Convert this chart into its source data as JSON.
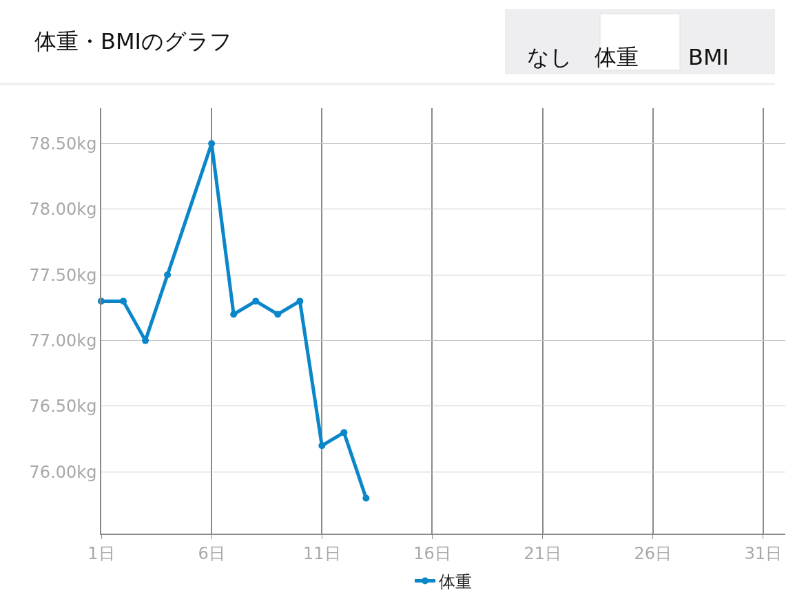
{
  "chart_data": {
    "type": "line",
    "title": "体重・BMIのグラフ",
    "annotations": [
      "なし",
      "体重",
      "BMI"
    ],
    "x": [
      1,
      2,
      3,
      4,
      6,
      7,
      8,
      9,
      10,
      11,
      12,
      13
    ],
    "series": [
      {
        "name": "体重",
        "color": "#0a86c9",
        "values": [
          77.3,
          77.3,
          77.0,
          77.5,
          78.5,
          77.2,
          77.3,
          77.2,
          77.3,
          76.2,
          76.3,
          75.8
        ]
      }
    ],
    "xlim": [
      1,
      32
    ],
    "ylim": [
      75.53,
      78.77
    ],
    "xticks": [
      {
        "value": 1,
        "label": "1日"
      },
      {
        "value": 6,
        "label": "6日"
      },
      {
        "value": 11,
        "label": "11日"
      },
      {
        "value": 16,
        "label": "16日"
      },
      {
        "value": 21,
        "label": "21日"
      },
      {
        "value": 26,
        "label": "26日"
      },
      {
        "value": 31,
        "label": "31日"
      }
    ],
    "yticks": [
      {
        "value": 76.0,
        "label": "76.00kg"
      },
      {
        "value": 76.5,
        "label": "76.50kg"
      },
      {
        "value": 77.0,
        "label": "77.00kg"
      },
      {
        "value": 77.5,
        "label": "77.50kg"
      },
      {
        "value": 78.0,
        "label": "78.00kg"
      },
      {
        "value": 78.5,
        "label": "78.50kg"
      }
    ],
    "grid": true,
    "legend": "bottom",
    "marker": "circle",
    "line_style": "solid"
  }
}
